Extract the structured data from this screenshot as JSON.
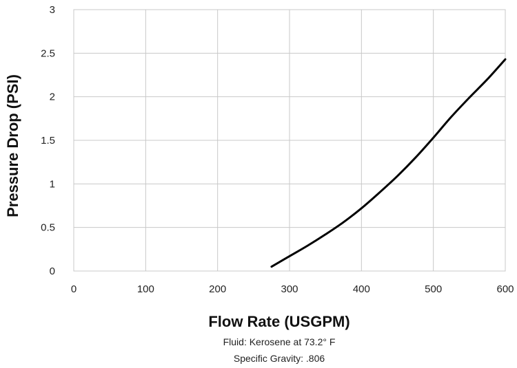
{
  "chart_data": {
    "type": "line",
    "title": "",
    "xlabel": "Flow Rate (USGPM)",
    "ylabel": "Pressure Drop (PSI)",
    "xlim": [
      0,
      600
    ],
    "ylim": [
      0,
      3
    ],
    "xticks": [
      "0",
      "100",
      "200",
      "300",
      "400",
      "500",
      "600"
    ],
    "yticks": [
      "0",
      "0.5",
      "1",
      "1.5",
      "2",
      "2.5",
      "3"
    ],
    "grid": true,
    "legend": "none",
    "notes": [
      "Fluid: Kerosene at 73.2° F",
      "Specific Gravity: .806"
    ],
    "series": [
      {
        "color": "#000000",
        "x": [
          275,
          300,
          325,
          350,
          375,
          400,
          425,
          450,
          475,
          500,
          525,
          550,
          575,
          600
        ],
        "y": [
          0.05,
          0.17,
          0.29,
          0.42,
          0.56,
          0.72,
          0.9,
          1.09,
          1.3,
          1.53,
          1.77,
          1.99,
          2.2,
          2.43
        ]
      }
    ]
  }
}
